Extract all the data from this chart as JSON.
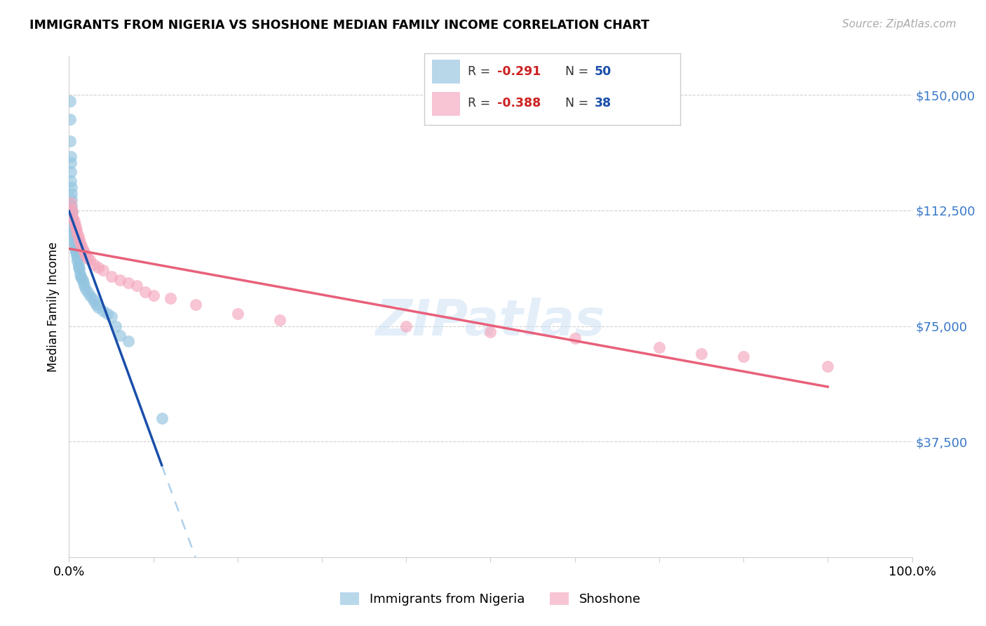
{
  "title": "IMMIGRANTS FROM NIGERIA VS SHOSHONE MEDIAN FAMILY INCOME CORRELATION CHART",
  "source": "Source: ZipAtlas.com",
  "ylabel": "Median Family Income",
  "ytick_labels": [
    "$37,500",
    "$75,000",
    "$112,500",
    "$150,000"
  ],
  "ytick_values": [
    37500,
    75000,
    112500,
    150000
  ],
  "ymin": 0,
  "ymax": 162500,
  "xmin": 0.0,
  "xmax": 1.0,
  "legend_r1_label": "R = ",
  "legend_r1_val": "-0.291",
  "legend_n1_label": "N = ",
  "legend_n1_val": "50",
  "legend_r2_label": "R = ",
  "legend_r2_val": "-0.388",
  "legend_n2_label": "N = ",
  "legend_n2_val": "38",
  "label1": "Immigrants from Nigeria",
  "label2": "Shoshone",
  "color1": "#92c4e0",
  "color2": "#f4a6bc",
  "trendline1_solid_color": "#1a4faa",
  "trendline2_color": "#e8607a",
  "trendline1_dashed_color": "#b0d0ea",
  "watermark_text": "ZIPatlas",
  "nigeria_x": [
    0.001,
    0.001,
    0.001,
    0.002,
    0.002,
    0.002,
    0.002,
    0.003,
    0.003,
    0.003,
    0.003,
    0.004,
    0.004,
    0.004,
    0.005,
    0.005,
    0.005,
    0.006,
    0.006,
    0.006,
    0.007,
    0.007,
    0.008,
    0.008,
    0.009,
    0.01,
    0.01,
    0.011,
    0.011,
    0.012,
    0.013,
    0.014,
    0.015,
    0.016,
    0.017,
    0.018,
    0.02,
    0.022,
    0.025,
    0.028,
    0.03,
    0.032,
    0.035,
    0.04,
    0.045,
    0.05,
    0.055,
    0.06,
    0.07,
    0.11
  ],
  "nigeria_y": [
    148000,
    142000,
    135000,
    130000,
    128000,
    125000,
    122000,
    120000,
    118000,
    116000,
    114000,
    112000,
    110000,
    108000,
    107000,
    106000,
    105000,
    104000,
    103000,
    102000,
    101000,
    100000,
    99000,
    99500,
    98000,
    97000,
    96000,
    95000,
    94000,
    93500,
    92000,
    91000,
    90500,
    90000,
    89000,
    88000,
    87000,
    86000,
    85000,
    84000,
    83000,
    82000,
    81000,
    80000,
    79000,
    78000,
    75000,
    72000,
    70000,
    45000
  ],
  "shoshone_x": [
    0.002,
    0.003,
    0.004,
    0.005,
    0.006,
    0.007,
    0.008,
    0.009,
    0.01,
    0.011,
    0.012,
    0.013,
    0.015,
    0.016,
    0.018,
    0.02,
    0.022,
    0.025,
    0.03,
    0.035,
    0.04,
    0.05,
    0.06,
    0.07,
    0.08,
    0.09,
    0.1,
    0.12,
    0.15,
    0.2,
    0.25,
    0.4,
    0.5,
    0.6,
    0.7,
    0.75,
    0.8,
    0.9
  ],
  "shoshone_y": [
    115000,
    113000,
    112000,
    110000,
    109000,
    108000,
    107000,
    106000,
    105000,
    104000,
    103000,
    102000,
    101000,
    100000,
    99000,
    98000,
    97000,
    96500,
    95000,
    94000,
    93000,
    91000,
    90000,
    89000,
    88000,
    86000,
    85000,
    84000,
    82000,
    79000,
    77000,
    75000,
    73000,
    71000,
    68000,
    66000,
    65000,
    62000
  ],
  "bg_color": "#ffffff",
  "grid_color": "#d0d0d0",
  "ytick_color": "#3878c8",
  "xtick_color": "#000000"
}
